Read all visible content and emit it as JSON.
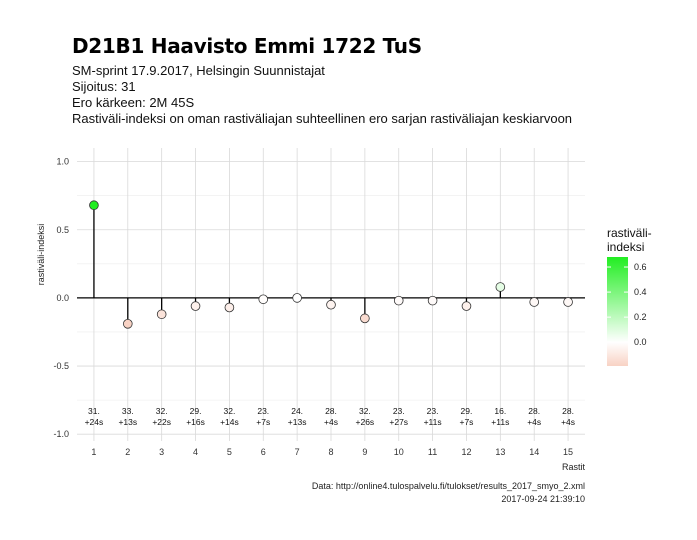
{
  "header": {
    "title": "D21B1 Haavisto Emmi 1722 TuS",
    "subtitle": "SM-sprint 17.9.2017, Helsingin Suunnistajat",
    "placement": "Sijoitus: 31",
    "gap_to_winner": "Ero kärkeen: 2M 45S",
    "description": "Rastiväli-indeksi on oman rastiväliajan suhteellinen ero sarjan rastiväliajan keskiarvoon"
  },
  "caption": {
    "source": "Data: http://online4.tulospalvelu.fi/tulokset/results_2017_smyo_2.xml",
    "timestamp": "2017-09-24 21:39:10"
  },
  "chart_data": {
    "type": "scatter",
    "style": "lollipop",
    "xlabel": "Rastit",
    "ylabel": "rastiväli-indeksi",
    "xlim": [
      0.5,
      15.5
    ],
    "ylim": [
      -1.05,
      1.1
    ],
    "x": [
      1,
      2,
      3,
      4,
      5,
      6,
      7,
      8,
      9,
      10,
      11,
      12,
      13,
      14,
      15
    ],
    "values": [
      0.68,
      -0.19,
      -0.12,
      -0.06,
      -0.07,
      -0.01,
      0.0,
      -0.05,
      -0.15,
      -0.02,
      -0.02,
      -0.06,
      0.08,
      -0.03,
      -0.03
    ],
    "xticks": [
      "1",
      "2",
      "3",
      "4",
      "5",
      "6",
      "7",
      "8",
      "9",
      "10",
      "11",
      "12",
      "13",
      "14",
      "15"
    ],
    "yticks": [
      -1.0,
      -0.5,
      0.0,
      0.5,
      1.0
    ],
    "ytick_labels": [
      "-1.0",
      "-0.5",
      "0.0",
      "0.5",
      "1.0"
    ],
    "rank_labels": [
      "31.",
      "33.",
      "32.",
      "29.",
      "32.",
      "23.",
      "24.",
      "28.",
      "32.",
      "23.",
      "23.",
      "29.",
      "16.",
      "28.",
      "28."
    ],
    "time_labels": [
      "+24s",
      "+13s",
      "+22s",
      "+16s",
      "+14s",
      "+7s",
      "+13s",
      "+4s",
      "+26s",
      "+27s",
      "+11s",
      "+7s",
      "+11s",
      "+4s",
      "+4s"
    ],
    "grid": true,
    "legend": {
      "title_line1": "rastiväli-",
      "title_line2": "indeksi",
      "ticks": [
        0.6,
        0.4,
        0.2,
        0.0
      ],
      "tick_labels": [
        "0.6",
        "0.4",
        "0.2",
        "0.0"
      ],
      "range": [
        -0.19,
        0.68
      ],
      "color_negative": "#f8d2c4",
      "color_zero": "#ffffff",
      "color_positive": "#22ee22",
      "placement": "right"
    }
  }
}
